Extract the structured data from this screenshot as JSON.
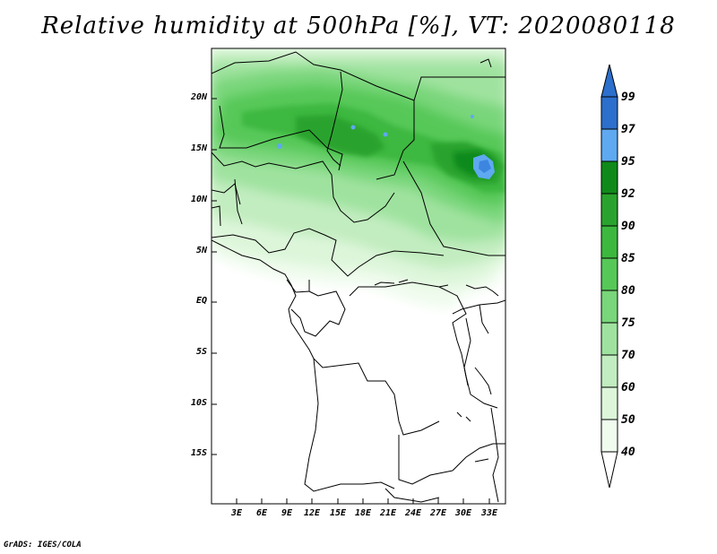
{
  "title": "Relative humidity at 500hPa [%], VT: 2020080118",
  "credit": "GrADS: IGES/COLA",
  "lat_labels": [
    "20N",
    "15N",
    "10N",
    "5N",
    "EQ",
    "5S",
    "10S",
    "15S"
  ],
  "lon_labels": [
    "3E",
    "6E",
    "9E",
    "12E",
    "15E",
    "18E",
    "21E",
    "24E",
    "27E",
    "30E",
    "33E"
  ],
  "colorbar": {
    "levels": [
      "99",
      "97",
      "95",
      "92",
      "90",
      "85",
      "80",
      "75",
      "70",
      "60",
      "50",
      "40"
    ],
    "colors": [
      "#2c6fcc",
      "#3d86e0",
      "#5ea9f0",
      "#0f8a1a",
      "#2aa32e",
      "#3db83f",
      "#56c858",
      "#79d67a",
      "#9fe29f",
      "#c2edc0",
      "#ddf6da",
      "#f0fcee"
    ]
  },
  "chart_data": {
    "type": "heatmap",
    "title": "Relative humidity at 500hPa [%], VT: 2020080118",
    "variable": "Relative humidity",
    "units": "%",
    "pressure_level": "500hPa",
    "valid_time": "2020080118",
    "lon_range": [
      0,
      34
    ],
    "lat_range": [
      -19,
      24.5
    ],
    "contour_levels": [
      40,
      50,
      60,
      70,
      75,
      80,
      85,
      90,
      92,
      95,
      97,
      99
    ]
  }
}
